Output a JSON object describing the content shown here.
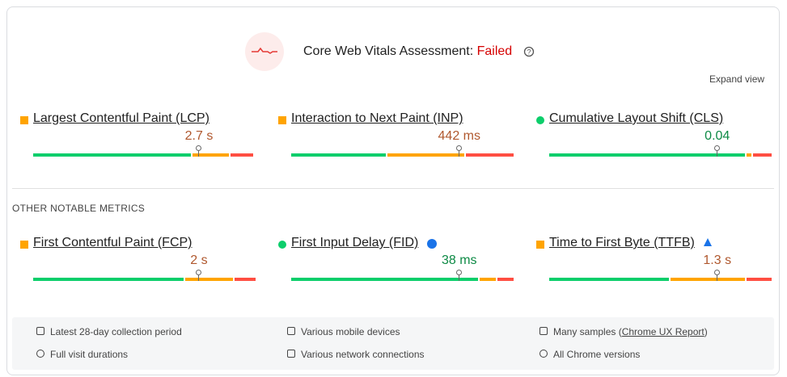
{
  "header": {
    "title": "Core Web Vitals Assessment:",
    "status": "Failed",
    "expand": "Expand view"
  },
  "core_metrics": [
    {
      "label": "Largest Contentful Paint (LCP)",
      "value": "2.7 s",
      "status": "average",
      "distribution": [
        71,
        17,
        11
      ],
      "marker": 74
    },
    {
      "label": "Interaction to Next Paint (INP)",
      "value": "442 ms",
      "status": "average",
      "distribution": [
        43,
        35,
        22
      ],
      "marker": 75
    },
    {
      "label": "Cumulative Layout Shift (CLS)",
      "value": "0.04",
      "status": "good",
      "distribution": [
        88,
        3,
        9
      ],
      "marker": 75
    }
  ],
  "section_title": "OTHER NOTABLE METRICS",
  "other_metrics": [
    {
      "label": "First Contentful Paint (FCP)",
      "value": "2 s",
      "status": "average",
      "distribution": [
        68,
        22,
        10
      ],
      "marker": 74
    },
    {
      "label": "First Input Delay (FID)",
      "value": "38 ms",
      "status": "good",
      "distribution": [
        84,
        8,
        8
      ],
      "marker": 75
    },
    {
      "label": "Time to First Byte (TTFB)",
      "value": "1.3 s",
      "status": "average",
      "distribution": [
        54,
        34,
        12
      ],
      "marker": 75
    }
  ],
  "footer": {
    "items": [
      {
        "text": "Latest 28-day collection period"
      },
      {
        "text": "Various mobile devices"
      },
      {
        "text": "Many samples (",
        "link": "Chrome UX Report",
        "suffix": ")"
      },
      {
        "text": "Full visit durations"
      },
      {
        "text": "Various network connections"
      },
      {
        "text": "All Chrome versions"
      }
    ]
  }
}
